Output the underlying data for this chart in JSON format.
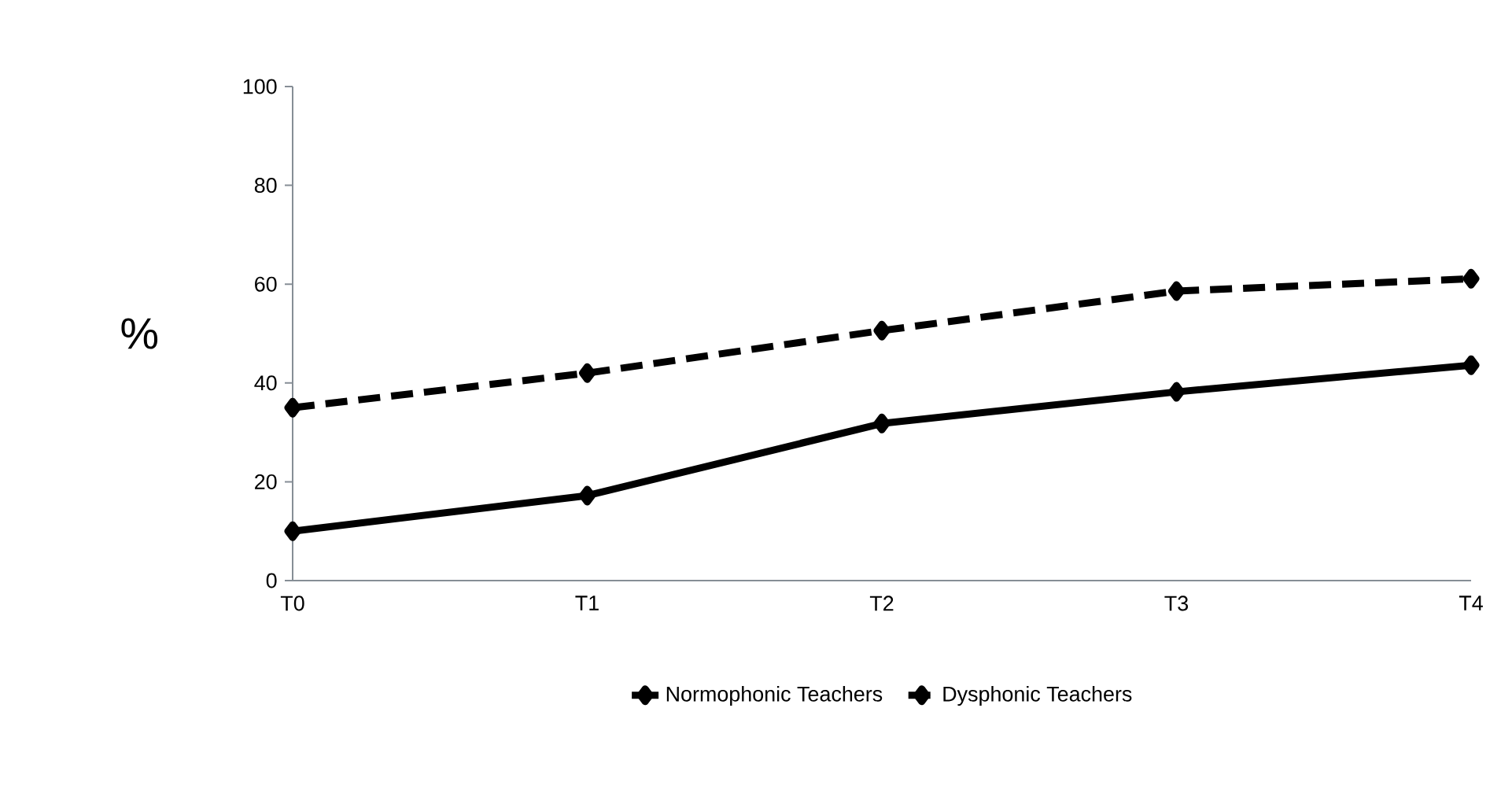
{
  "chart_data": {
    "type": "line",
    "ylabel": "%",
    "categories": [
      "T0",
      "T1",
      "T2",
      "T3",
      "T4"
    ],
    "series": [
      {
        "name": "Normophonic Teachers",
        "color": "#000000",
        "line_style": "solid",
        "values": [
          10,
          17.2,
          31.8,
          38.2,
          43.6
        ]
      },
      {
        "name": "Dysphonic Teachers",
        "color": "#000000",
        "line_style": "dashed",
        "values": [
          35,
          42,
          50.6,
          58.6,
          61.1
        ]
      }
    ],
    "ylim": [
      0,
      100
    ],
    "yticks": [
      0,
      20,
      40,
      60,
      80,
      100
    ],
    "grid": false,
    "legend": "bottom",
    "marker": "diamond"
  }
}
